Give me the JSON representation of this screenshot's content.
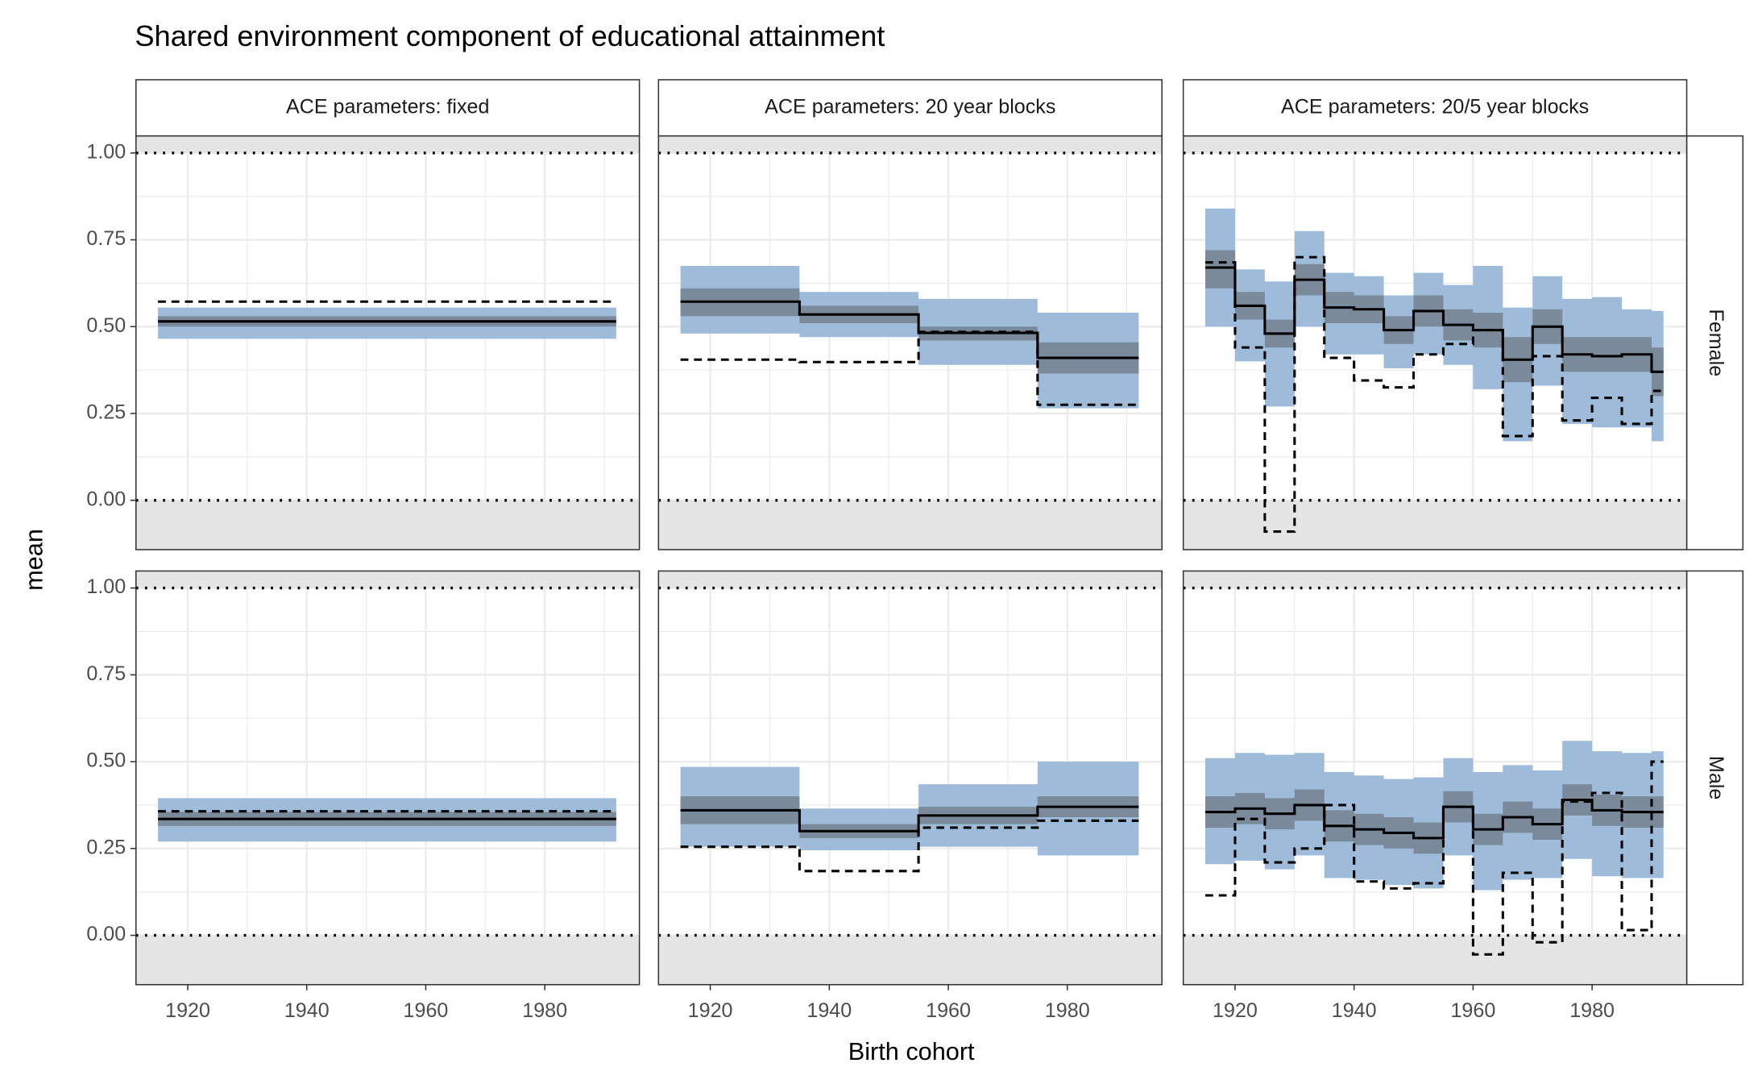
{
  "title": "Shared environment component of educational attainment",
  "x_label": "Birth cohort",
  "y_label": "mean",
  "columns": [
    "ACE parameters: fixed",
    "ACE parameters: 20 year blocks",
    "ACE parameters: 20/5 year blocks"
  ],
  "rows": [
    "Female",
    "Male"
  ],
  "chart_data": [
    {
      "type": "step",
      "x": [
        1915,
        1992
      ],
      "series": [
        {
          "color": "#000000",
          "dash": "solid",
          "values": [
            0.515,
            0.515
          ]
        },
        {
          "color": "#000000",
          "dash": "dashed",
          "values": [
            0.572,
            0.572
          ]
        }
      ],
      "ribbons": [
        {
          "color": "#9ebcda",
          "upper": [
            0.555,
            0.555
          ],
          "lower": [
            0.465,
            0.465
          ]
        },
        {
          "color": "#7a8a9b",
          "upper": [
            0.53,
            0.53
          ],
          "lower": [
            0.5,
            0.5
          ]
        }
      ],
      "hlines": [
        0,
        1
      ],
      "xlim": [
        1911.3,
        1995.9
      ],
      "ylim": [
        -0.142,
        1.049
      ],
      "xticks": [
        1920,
        1940,
        1960,
        1980
      ],
      "yticks": [
        {
          "value": 0,
          "label": "0.00"
        },
        0.25,
        {
          "value": 0.5,
          "label": "0.50"
        },
        0.75,
        {
          "value": 1,
          "label": "1.00"
        }
      ],
      "grid": true
    },
    {
      "type": "step",
      "x": [
        1915,
        1935,
        1955,
        1975,
        1992
      ],
      "series": [
        {
          "color": "#000000",
          "dash": "solid",
          "values": [
            0.572,
            0.535,
            0.482,
            0.41,
            0.41
          ]
        },
        {
          "color": "#000000",
          "dash": "dashed",
          "values": [
            0.405,
            0.398,
            0.485,
            0.275,
            0.275
          ]
        }
      ],
      "ribbons": [
        {
          "color": "#9ebcda",
          "upper": [
            0.675,
            0.6,
            0.58,
            0.54,
            0.54
          ],
          "lower": [
            0.48,
            0.47,
            0.39,
            0.265,
            0.265
          ]
        },
        {
          "color": "#7a8a9b",
          "upper": [
            0.61,
            0.56,
            0.5,
            0.455,
            0.455
          ],
          "lower": [
            0.53,
            0.51,
            0.46,
            0.365,
            0.365
          ]
        }
      ],
      "hlines": [
        0,
        1
      ],
      "xlim": [
        1911.3,
        1995.9
      ],
      "ylim": [
        -0.142,
        1.049
      ],
      "xticks": [
        1920,
        1940,
        1960,
        1980
      ],
      "yticks": [
        {
          "value": 0,
          "label": "0.00"
        },
        0.25,
        {
          "value": 0.5,
          "label": "0.50"
        },
        0.75,
        {
          "value": 1,
          "label": "1.00"
        }
      ],
      "grid": true
    },
    {
      "type": "step",
      "x": [
        1915,
        1920,
        1925,
        1930,
        1935,
        1940,
        1945,
        1950,
        1955,
        1960,
        1965,
        1970,
        1975,
        1980,
        1985,
        1990,
        1992
      ],
      "series": [
        {
          "color": "#000000",
          "dash": "solid",
          "values": [
            0.67,
            0.56,
            0.48,
            0.635,
            0.555,
            0.55,
            0.49,
            0.545,
            0.505,
            0.49,
            0.405,
            0.5,
            0.42,
            0.415,
            0.42,
            0.37,
            0.37
          ]
        },
        {
          "color": "#000000",
          "dash": "dashed",
          "values": [
            0.685,
            0.44,
            -0.09,
            0.7,
            0.41,
            0.345,
            0.325,
            0.42,
            0.45,
            0.49,
            0.185,
            0.415,
            0.23,
            0.295,
            0.22,
            0.315,
            0.315
          ]
        }
      ],
      "ribbons": [
        {
          "color": "#9ebcda",
          "upper": [
            0.84,
            0.665,
            0.63,
            0.775,
            0.655,
            0.645,
            0.59,
            0.655,
            0.62,
            0.675,
            0.555,
            0.645,
            0.58,
            0.585,
            0.55,
            0.545,
            0.545
          ],
          "lower": [
            0.5,
            0.4,
            0.27,
            0.5,
            0.42,
            0.42,
            0.38,
            0.42,
            0.39,
            0.32,
            0.17,
            0.33,
            0.22,
            0.21,
            0.21,
            0.17,
            0.17
          ]
        },
        {
          "color": "#7a8a9b",
          "upper": [
            0.72,
            0.6,
            0.52,
            0.68,
            0.6,
            0.59,
            0.53,
            0.59,
            0.55,
            0.54,
            0.47,
            0.55,
            0.47,
            0.47,
            0.47,
            0.44,
            0.44
          ],
          "lower": [
            0.61,
            0.52,
            0.44,
            0.59,
            0.51,
            0.51,
            0.45,
            0.5,
            0.46,
            0.44,
            0.34,
            0.45,
            0.37,
            0.37,
            0.37,
            0.3,
            0.3
          ]
        }
      ],
      "hlines": [
        0,
        1
      ],
      "xlim": [
        1911.3,
        1995.9
      ],
      "ylim": [
        -0.142,
        1.049
      ],
      "xticks": [
        1920,
        1940,
        1960,
        1980
      ],
      "yticks": [
        {
          "value": 0,
          "label": "0.00"
        },
        0.25,
        {
          "value": 0.5,
          "label": "0.50"
        },
        0.75,
        {
          "value": 1,
          "label": "1.00"
        }
      ],
      "grid": true
    },
    {
      "type": "step",
      "x": [
        1915,
        1992
      ],
      "series": [
        {
          "color": "#000000",
          "dash": "solid",
          "values": [
            0.335,
            0.335
          ]
        },
        {
          "color": "#000000",
          "dash": "dashed",
          "values": [
            0.357,
            0.357
          ]
        }
      ],
      "ribbons": [
        {
          "color": "#9ebcda",
          "upper": [
            0.395,
            0.395
          ],
          "lower": [
            0.27,
            0.27
          ]
        },
        {
          "color": "#7a8a9b",
          "upper": [
            0.355,
            0.355
          ],
          "lower": [
            0.315,
            0.315
          ]
        }
      ],
      "hlines": [
        0,
        1
      ],
      "xlim": [
        1911.3,
        1995.9
      ],
      "ylim": [
        -0.142,
        1.049
      ],
      "xticks": [
        1920,
        1940,
        1960,
        1980
      ],
      "yticks": [
        {
          "value": 0,
          "label": "0.00"
        },
        0.25,
        {
          "value": 0.5,
          "label": "0.50"
        },
        0.75,
        {
          "value": 1,
          "label": "1.00"
        }
      ],
      "grid": true
    },
    {
      "type": "step",
      "x": [
        1915,
        1935,
        1955,
        1975,
        1992
      ],
      "series": [
        {
          "color": "#000000",
          "dash": "solid",
          "values": [
            0.36,
            0.3,
            0.345,
            0.37,
            0.37
          ]
        },
        {
          "color": "#000000",
          "dash": "dashed",
          "values": [
            0.255,
            0.185,
            0.31,
            0.33,
            0.33
          ]
        }
      ],
      "ribbons": [
        {
          "color": "#9ebcda",
          "upper": [
            0.485,
            0.365,
            0.435,
            0.5,
            0.5
          ],
          "lower": [
            0.255,
            0.245,
            0.255,
            0.23,
            0.23
          ]
        },
        {
          "color": "#7a8a9b",
          "upper": [
            0.4,
            0.32,
            0.37,
            0.4,
            0.4
          ],
          "lower": [
            0.32,
            0.28,
            0.32,
            0.34,
            0.34
          ]
        }
      ],
      "hlines": [
        0,
        1
      ],
      "xlim": [
        1911.3,
        1995.9
      ],
      "ylim": [
        -0.142,
        1.049
      ],
      "xticks": [
        1920,
        1940,
        1960,
        1980
      ],
      "yticks": [
        {
          "value": 0,
          "label": "0.00"
        },
        0.25,
        {
          "value": 0.5,
          "label": "0.50"
        },
        0.75,
        {
          "value": 1,
          "label": "1.00"
        }
      ],
      "grid": true
    },
    {
      "type": "step",
      "x": [
        1915,
        1920,
        1925,
        1930,
        1935,
        1940,
        1945,
        1950,
        1955,
        1960,
        1965,
        1970,
        1975,
        1980,
        1985,
        1990,
        1992
      ],
      "series": [
        {
          "color": "#000000",
          "dash": "solid",
          "values": [
            0.355,
            0.365,
            0.35,
            0.375,
            0.315,
            0.305,
            0.295,
            0.28,
            0.37,
            0.305,
            0.34,
            0.32,
            0.39,
            0.36,
            0.355,
            0.355,
            0.355
          ]
        },
        {
          "color": "#000000",
          "dash": "dashed",
          "values": [
            0.115,
            0.335,
            0.21,
            0.25,
            0.375,
            0.155,
            0.135,
            0.15,
            0.37,
            -0.055,
            0.18,
            -0.02,
            0.385,
            0.41,
            0.015,
            0.5,
            0.5
          ]
        }
      ],
      "ribbons": [
        {
          "color": "#9ebcda",
          "upper": [
            0.51,
            0.525,
            0.52,
            0.525,
            0.47,
            0.46,
            0.45,
            0.455,
            0.51,
            0.47,
            0.49,
            0.475,
            0.56,
            0.53,
            0.525,
            0.53,
            0.53
          ],
          "lower": [
            0.205,
            0.215,
            0.19,
            0.23,
            0.165,
            0.16,
            0.145,
            0.135,
            0.23,
            0.13,
            0.16,
            0.165,
            0.22,
            0.17,
            0.165,
            0.165,
            0.165
          ]
        },
        {
          "color": "#7a8a9b",
          "upper": [
            0.4,
            0.41,
            0.395,
            0.42,
            0.36,
            0.35,
            0.34,
            0.325,
            0.415,
            0.35,
            0.385,
            0.365,
            0.435,
            0.405,
            0.4,
            0.4,
            0.4
          ],
          "lower": [
            0.31,
            0.32,
            0.305,
            0.33,
            0.27,
            0.26,
            0.25,
            0.235,
            0.325,
            0.26,
            0.295,
            0.275,
            0.345,
            0.315,
            0.31,
            0.31,
            0.31
          ]
        }
      ],
      "hlines": [
        0,
        1
      ],
      "xlim": [
        1911.3,
        1995.9
      ],
      "ylim": [
        -0.142,
        1.049
      ],
      "xticks": [
        1920,
        1940,
        1960,
        1980
      ],
      "yticks": [
        {
          "value": 0,
          "label": "0.00"
        },
        0.25,
        {
          "value": 0.5,
          "label": "0.50"
        },
        0.75,
        {
          "value": 1,
          "label": "1.00"
        }
      ],
      "grid": true
    }
  ]
}
